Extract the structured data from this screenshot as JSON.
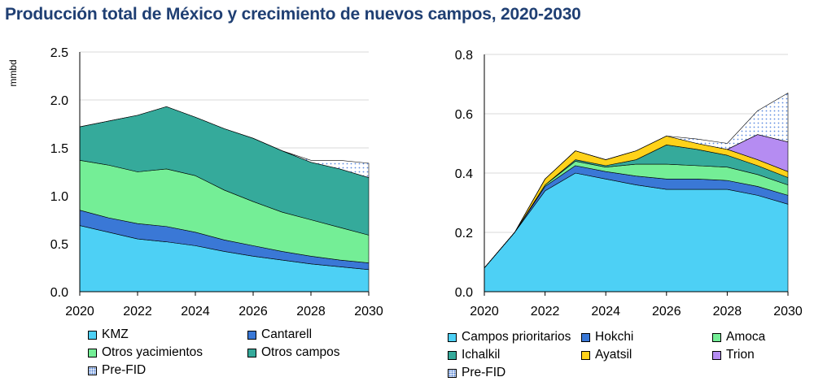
{
  "title": "Producción total de México y crecimiento de nuevos campos, 2020-2030",
  "colors": {
    "kmz": "#4dd0f5",
    "cantarell": "#3a78d6",
    "otros_yacimientos": "#74ee96",
    "otros_campos": "#35aa9b",
    "pre_fid": "#5a8ae0",
    "campos_prioritarios": "#4dd0f5",
    "hokchi": "#3a78d6",
    "amoca": "#74ee96",
    "ichalkil": "#35aa9b",
    "ayatsil": "#ffd21a",
    "trion": "#b58cf2",
    "grid": "#d9d9d9",
    "axis": "#000000"
  },
  "chart_data": [
    {
      "type": "area",
      "stacked": true,
      "ylabel": "mmbd",
      "ylim": [
        0,
        2.5
      ],
      "yticks": [
        "0.0",
        "0.5",
        "1.0",
        "1.5",
        "2.0",
        "2.5"
      ],
      "xticks": [
        "2020",
        "2022",
        "2024",
        "2026",
        "2028",
        "2030"
      ],
      "grid": true,
      "legend_position": "bottom",
      "x": [
        2020,
        2021,
        2022,
        2023,
        2024,
        2025,
        2026,
        2027,
        2028,
        2029,
        2030
      ],
      "series": [
        {
          "name": "KMZ",
          "color_key": "kmz",
          "values": [
            0.69,
            0.62,
            0.55,
            0.52,
            0.48,
            0.42,
            0.37,
            0.33,
            0.29,
            0.26,
            0.23
          ]
        },
        {
          "name": "Cantarell",
          "color_key": "cantarell",
          "values": [
            0.16,
            0.15,
            0.16,
            0.16,
            0.14,
            0.12,
            0.11,
            0.09,
            0.08,
            0.07,
            0.07
          ]
        },
        {
          "name": "Otros yacimientos",
          "color_key": "otros_yacimientos",
          "values": [
            0.52,
            0.55,
            0.54,
            0.6,
            0.59,
            0.52,
            0.46,
            0.41,
            0.38,
            0.34,
            0.29
          ]
        },
        {
          "name": "Otros campos",
          "color_key": "otros_campos",
          "values": [
            0.35,
            0.46,
            0.59,
            0.65,
            0.61,
            0.64,
            0.66,
            0.64,
            0.6,
            0.61,
            0.6
          ]
        },
        {
          "name": "Pre-FID",
          "color_key": "pre_fid",
          "pattern": "dots",
          "values": [
            0,
            0,
            0,
            0,
            0,
            0,
            0,
            0,
            0.02,
            0.09,
            0.15
          ]
        }
      ]
    },
    {
      "type": "area",
      "stacked": true,
      "ylabel": "",
      "ylim": [
        0,
        0.8
      ],
      "yticks": [
        "0.0",
        "0.2",
        "0.4",
        "0.6",
        "0.8"
      ],
      "xticks": [
        "2020",
        "2022",
        "2024",
        "2026",
        "2028",
        "2030"
      ],
      "grid": true,
      "legend_position": "bottom",
      "x": [
        2020,
        2021,
        2022,
        2023,
        2024,
        2025,
        2026,
        2027,
        2028,
        2029,
        2030
      ],
      "series": [
        {
          "name": "Campos prioritarios",
          "color_key": "campos_prioritarios",
          "values": [
            0.08,
            0.2,
            0.34,
            0.4,
            0.38,
            0.36,
            0.345,
            0.345,
            0.345,
            0.325,
            0.295
          ]
        },
        {
          "name": "Hokchi",
          "color_key": "hokchi",
          "values": [
            0,
            0,
            0.015,
            0.025,
            0.025,
            0.03,
            0.035,
            0.035,
            0.03,
            0.03,
            0.03
          ]
        },
        {
          "name": "Amoca",
          "color_key": "amoca",
          "values": [
            0,
            0,
            0.005,
            0.015,
            0.015,
            0.04,
            0.05,
            0.045,
            0.045,
            0.04,
            0.035
          ]
        },
        {
          "name": "Ichalkil",
          "color_key": "ichalkil",
          "values": [
            0,
            0,
            0,
            0.005,
            0.005,
            0.015,
            0.065,
            0.055,
            0.04,
            0.03,
            0.025
          ]
        },
        {
          "name": "Ayatsil",
          "color_key": "ayatsil",
          "values": [
            0,
            0,
            0.02,
            0.03,
            0.02,
            0.03,
            0.03,
            0.02,
            0.02,
            0.02,
            0.02
          ]
        },
        {
          "name": "Trion",
          "color_key": "trion",
          "values": [
            0,
            0,
            0,
            0,
            0,
            0,
            0,
            0,
            0,
            0.085,
            0.1
          ]
        },
        {
          "name": "Pre-FID",
          "color_key": "pre_fid",
          "pattern": "dots",
          "values": [
            0,
            0,
            0,
            0,
            0,
            0,
            0,
            0.015,
            0.02,
            0.08,
            0.165
          ]
        }
      ]
    }
  ]
}
